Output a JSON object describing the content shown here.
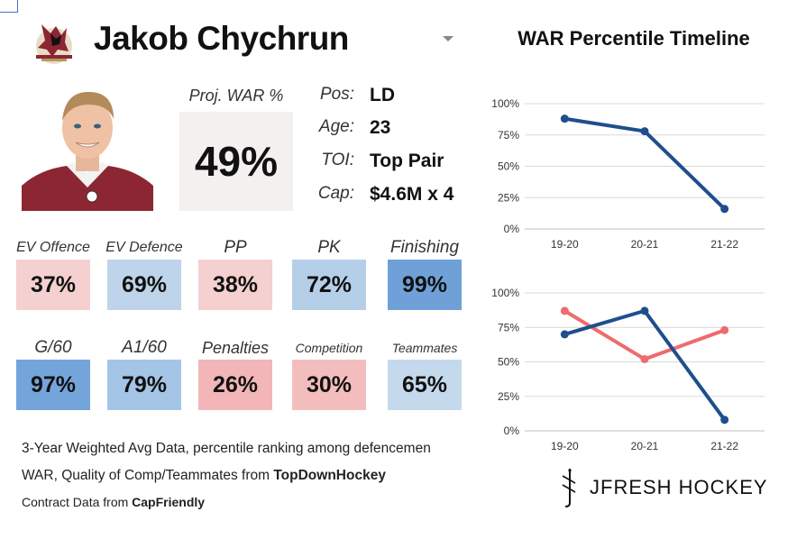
{
  "header": {
    "player_name": "Jakob Chychrun",
    "timeline_title": "WAR Percentile Timeline"
  },
  "projected_war": {
    "label": "Proj. WAR %",
    "value": "49%"
  },
  "info": [
    {
      "key": "Pos:",
      "value": "LD"
    },
    {
      "key": "Age:",
      "value": "23"
    },
    {
      "key": "TOI:",
      "value": "Top Pair"
    },
    {
      "key": "Cap:",
      "value": "$4.6M x 4"
    }
  ],
  "stats_row1": [
    {
      "label": "EV Offence",
      "value": "37%",
      "color": "#f4d0d0"
    },
    {
      "label": "EV Defence",
      "value": "69%",
      "color": "#bdd4ea"
    },
    {
      "label": "PP",
      "value": "38%",
      "color": "#f4d0d0"
    },
    {
      "label": "PK",
      "value": "72%",
      "color": "#b6cfe9"
    },
    {
      "label": "Finishing",
      "value": "99%",
      "color": "#6fa1d8"
    }
  ],
  "stats_row2": [
    {
      "label": "G/60",
      "value": "97%",
      "color": "#74a5da"
    },
    {
      "label": "A1/60",
      "value": "79%",
      "color": "#a4c5e6"
    },
    {
      "label": "Penalties",
      "value": "26%",
      "color": "#f2b6b8"
    },
    {
      "label": "Competition",
      "value": "30%",
      "color": "#f3bdbe"
    },
    {
      "label": "Teammates",
      "value": "65%",
      "color": "#c5d9ec"
    }
  ],
  "footnotes": {
    "line1": "3-Year Weighted Avg Data, percentile ranking among defencemen",
    "line2_prefix": "WAR, Quality of Comp/Teammates from ",
    "line2_source": "TopDownHockey",
    "line3_prefix": "Contract Data from ",
    "line3_source": "CapFriendly"
  },
  "brand": {
    "name": "JFRESH HOCKEY"
  },
  "icons": {
    "team_logo": "coyotes-logo-icon",
    "dropdown": "dropdown-caret-icon",
    "headshot": "player-headshot-image",
    "brand_mark": "jfresh-mark-icon"
  },
  "colors": {
    "blue_series": "#1f4e8c",
    "red_series": "#ee6b6e",
    "gridline": "#d9d9d9"
  },
  "chart_data": [
    {
      "type": "line",
      "categories": [
        "19-20",
        "20-21",
        "21-22"
      ],
      "series": [
        {
          "values": [
            88,
            78,
            16
          ],
          "color": "#1f4e8c"
        }
      ],
      "yticks": [
        "0%",
        "25%",
        "50%",
        "75%",
        "100%"
      ],
      "ylim": [
        0,
        100
      ],
      "grid": true
    },
    {
      "type": "line",
      "categories": [
        "19-20",
        "20-21",
        "21-22"
      ],
      "series": [
        {
          "values": [
            70,
            87,
            8
          ],
          "color": "#1f4e8c"
        },
        {
          "values": [
            87,
            52,
            73
          ],
          "color": "#ee6b6e"
        }
      ],
      "yticks": [
        "0%",
        "25%",
        "50%",
        "75%",
        "100%"
      ],
      "ylim": [
        0,
        100
      ],
      "grid": true
    }
  ]
}
